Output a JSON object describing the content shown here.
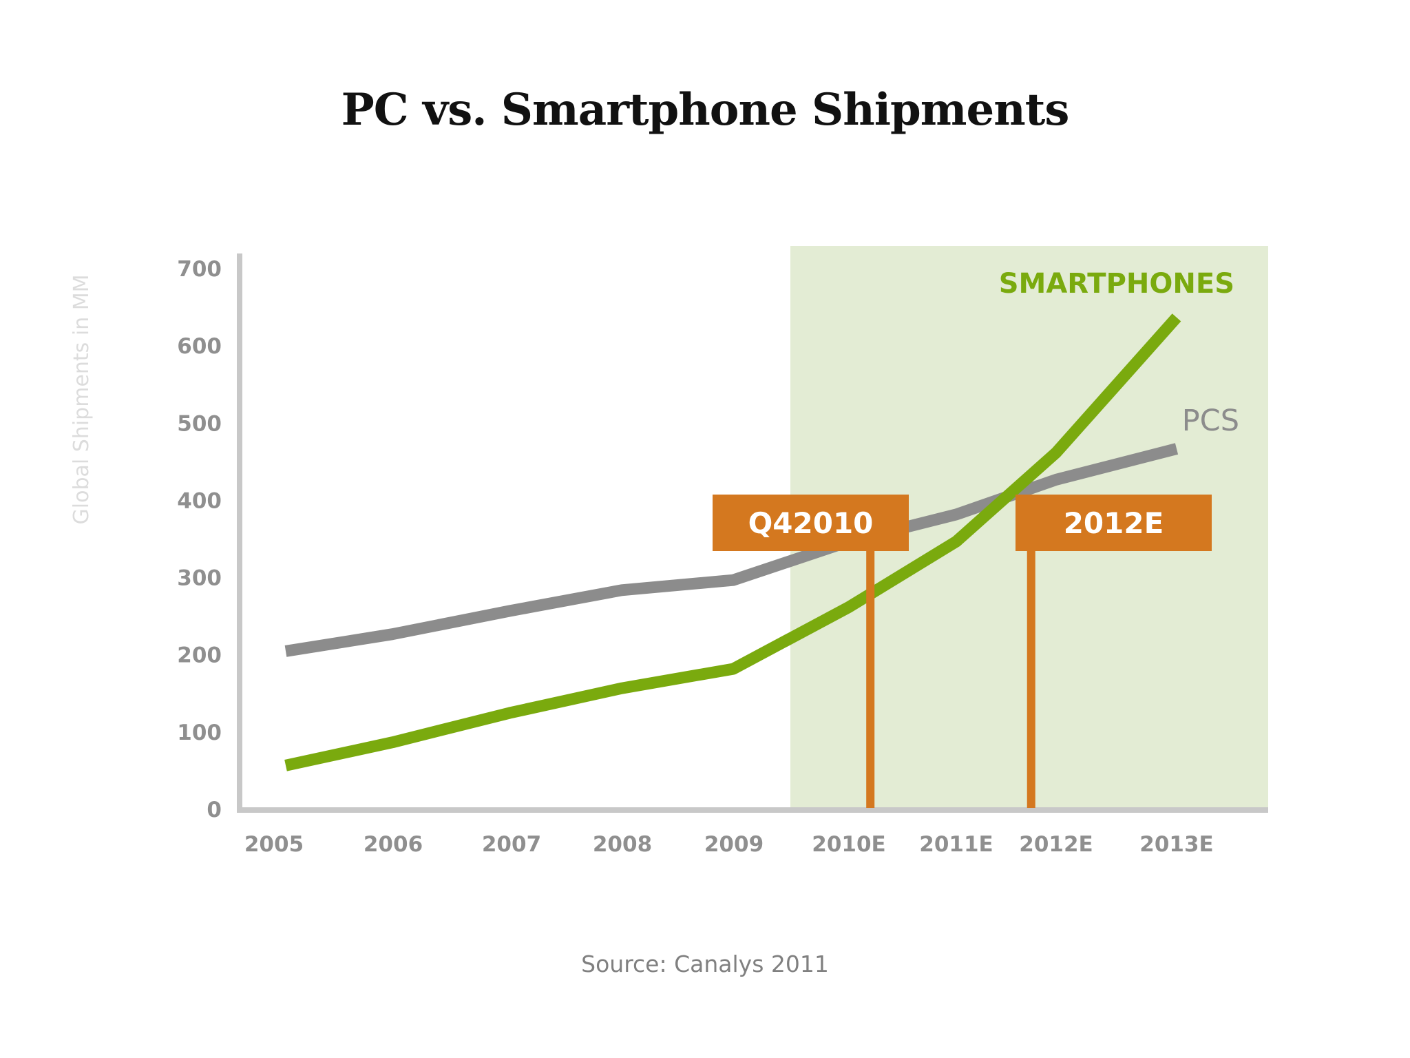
{
  "title": "PC vs. Smartphone Shipments",
  "source": "Source: Canalys 2011",
  "colors": {
    "smartphones": "#7aaa0e",
    "pcs": "#8c8c8c",
    "forecast_band": "#e3ecd4",
    "marker": "#d4781f",
    "axis": "#c8c8c8",
    "tick_text": "#8f8f8f",
    "ylabel_text": "#dcdcdc"
  },
  "chart_data": {
    "type": "line",
    "title": "PC vs. Smartphone Shipments",
    "xlabel": "",
    "ylabel": "Global Shipments in MM",
    "categories": [
      "2005",
      "2006",
      "2007",
      "2008",
      "2009",
      "2010E",
      "2011E",
      "2012E",
      "2013E"
    ],
    "yticks": [
      0,
      100,
      200,
      300,
      400,
      500,
      600,
      700
    ],
    "ylim": [
      0,
      700
    ],
    "grid": false,
    "series": [
      {
        "name": "PCS",
        "color_key": "pcs",
        "values": [
          203,
          225,
          255,
          282,
          295,
          345,
          380,
          425,
          465
        ]
      },
      {
        "name": "SMARTPHONES",
        "color_key": "smartphones",
        "values": [
          55,
          85,
          123,
          155,
          180,
          260,
          345,
          460,
          635
        ]
      }
    ],
    "shaded_region": {
      "from": "2010E",
      "to": "2013E",
      "note": "forecast"
    },
    "markers": [
      {
        "label": "Q42010",
        "x": 5.2
      },
      {
        "label": "2012E",
        "x": 6.75
      }
    ]
  }
}
